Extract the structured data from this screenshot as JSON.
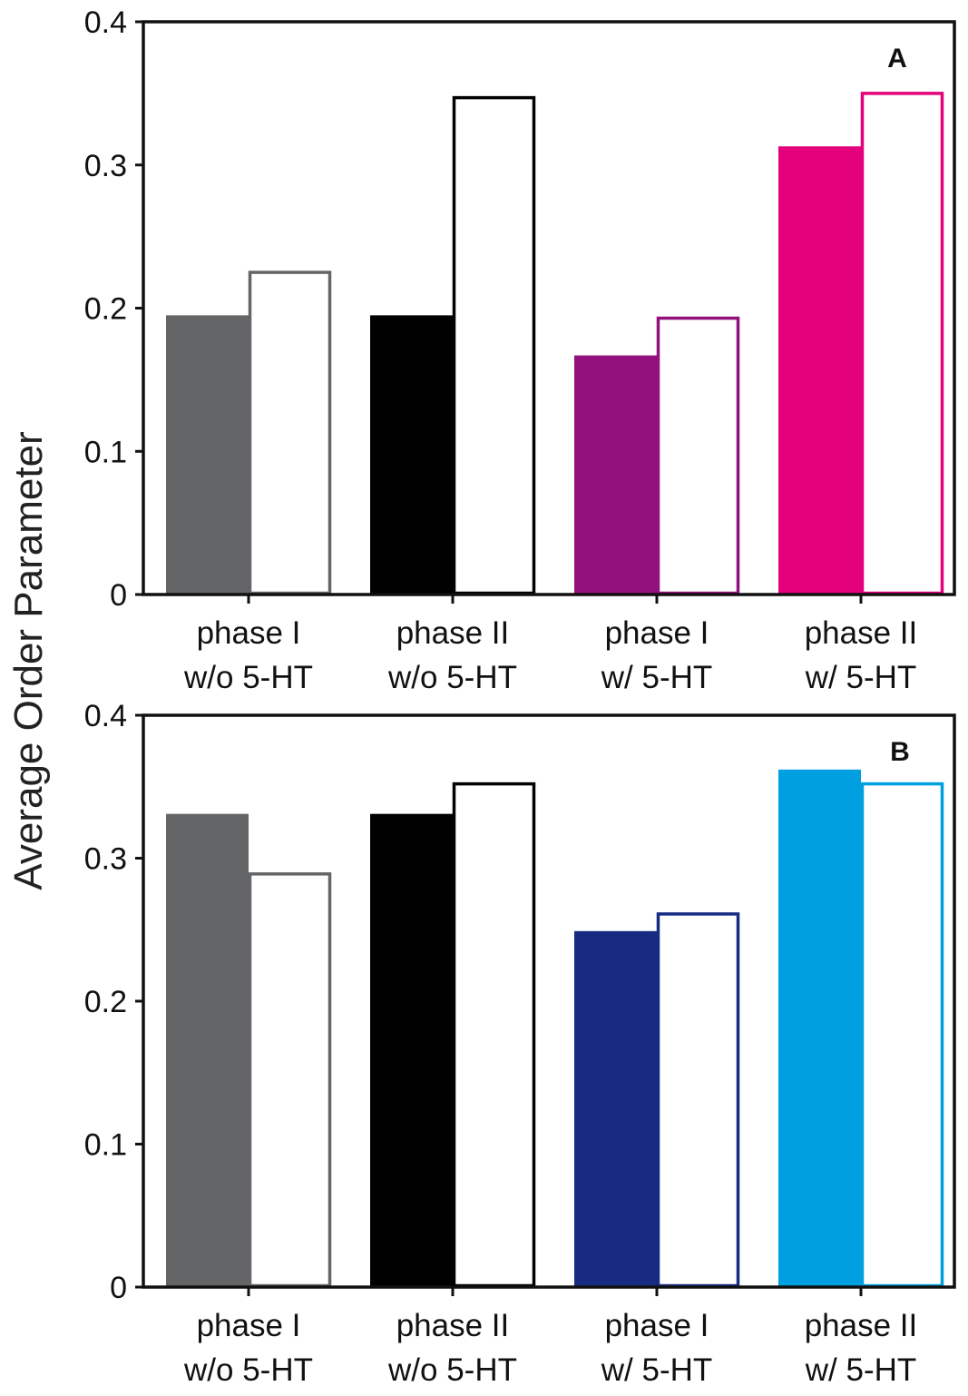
{
  "chart_data": {
    "ylabel": "Average Order Parameter",
    "panels": [
      {
        "type": "bar",
        "panel_label": "A",
        "ylim": [
          0,
          0.4
        ],
        "yticks": [
          "0",
          "0.1",
          "0.2",
          "0.3",
          "0.4"
        ],
        "categories": [
          [
            "phase I",
            "w/o 5-HT"
          ],
          [
            "phase II",
            "w/o 5-HT"
          ],
          [
            "phase I",
            "w/ 5-HT"
          ],
          [
            "phase II",
            "w/ 5-HT"
          ]
        ],
        "series": [
          {
            "name": "filled",
            "values": [
              0.195,
              0.195,
              0.167,
              0.313
            ]
          },
          {
            "name": "open",
            "values": [
              0.225,
              0.347,
              0.193,
              0.35
            ]
          }
        ],
        "colors": [
          "#646567",
          "#000000",
          "#92117d",
          "#e5007c"
        ]
      },
      {
        "type": "bar",
        "panel_label": "B",
        "ylim": [
          0,
          0.4
        ],
        "yticks": [
          "0",
          "0.1",
          "0.2",
          "0.3",
          "0.4"
        ],
        "categories": [
          [
            "phase I",
            "w/o 5-HT"
          ],
          [
            "phase II",
            "w/o 5-HT"
          ],
          [
            "phase I",
            "w/ 5-HT"
          ],
          [
            "phase II",
            "w/ 5-HT"
          ]
        ],
        "series": [
          {
            "name": "filled",
            "values": [
              0.331,
              0.331,
              0.249,
              0.362
            ]
          },
          {
            "name": "open",
            "values": [
              0.289,
              0.352,
              0.261,
              0.352
            ]
          }
        ],
        "colors": [
          "#646567",
          "#000000",
          "#182b83",
          "#009fe0"
        ]
      }
    ]
  }
}
